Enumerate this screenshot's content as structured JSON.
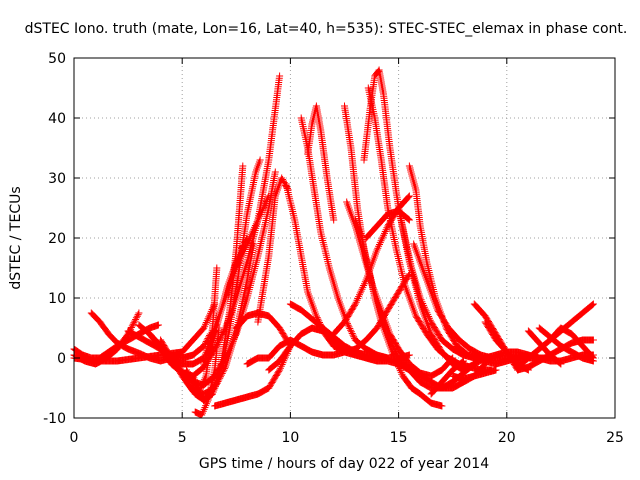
{
  "chart_data": {
    "type": "scatter",
    "title": "dSTEC Iono. truth (mate, Lon=16, Lat=40, h=535): STEC-STEC_elemax in phase cont.",
    "xlabel": "GPS time / hours of day 022 of year 2014",
    "ylabel": "dSTEC  / TECUs",
    "xlim": [
      0,
      25
    ],
    "ylim": [
      -10,
      50
    ],
    "xticks": [
      0,
      5,
      10,
      15,
      20,
      25
    ],
    "yticks": [
      -10,
      0,
      10,
      20,
      30,
      40,
      50
    ],
    "grid": true,
    "marker": "plus",
    "color": "#ff0000",
    "series": [
      {
        "x": [
          0.0,
          0.5,
          1.0,
          1.5,
          2.0,
          2.5,
          3.0
        ],
        "y": [
          0.5,
          -0.5,
          -1.0,
          0.0,
          1.5,
          4.0,
          7.5
        ]
      },
      {
        "x": [
          0.0,
          0.4,
          0.8,
          1.2,
          1.6,
          2.0,
          2.5,
          3.0,
          3.5,
          3.9
        ],
        "y": [
          1.5,
          0.5,
          0.0,
          0.0,
          1.0,
          2.0,
          3.0,
          4.0,
          5.0,
          5.5
        ]
      },
      {
        "x": [
          0.8,
          1.2,
          1.6,
          2.0,
          2.5,
          3.0,
          3.5,
          4.0,
          4.5,
          5.0
        ],
        "y": [
          7.5,
          6.0,
          4.0,
          2.5,
          1.5,
          0.8,
          0.0,
          -0.5,
          0.0,
          1.0
        ]
      },
      {
        "x": [
          0.0,
          1.0,
          2.0,
          3.0,
          4.0,
          5.0,
          6.0,
          6.5
        ],
        "y": [
          0.0,
          -0.5,
          -0.5,
          0.0,
          0.5,
          1.0,
          5.0,
          9.0
        ]
      },
      {
        "x": [
          2.5,
          3.0,
          3.5,
          4.0,
          4.5,
          5.0,
          5.5,
          6.0,
          6.3
        ],
        "y": [
          4.5,
          3.5,
          2.5,
          1.5,
          0.5,
          0.0,
          0.5,
          2.0,
          4.0
        ]
      },
      {
        "x": [
          3.0,
          3.5,
          4.0,
          4.5,
          5.0,
          5.5,
          6.0,
          6.5
        ],
        "y": [
          5.5,
          4.0,
          2.0,
          0.0,
          -1.0,
          -1.0,
          0.0,
          4.5
        ]
      },
      {
        "x": [
          3.5,
          4.0,
          4.5,
          5.0,
          5.5,
          6.0,
          6.5,
          7.0,
          7.5,
          8.0,
          8.5,
          9.0,
          9.5
        ],
        "y": [
          4.0,
          1.5,
          -1.0,
          -2.5,
          -3.0,
          -1.5,
          1.5,
          5.0,
          10.0,
          16.0,
          23.0,
          33.0,
          47.0
        ]
      },
      {
        "x": [
          4.0,
          4.5,
          5.0,
          5.5,
          6.0,
          6.5,
          7.0,
          7.5,
          8.0,
          8.5,
          9.0,
          9.3
        ],
        "y": [
          3.0,
          0.0,
          -2.5,
          -4.0,
          -4.5,
          -3.0,
          0.0,
          4.0,
          10.0,
          17.0,
          25.0,
          31.0
        ]
      },
      {
        "x": [
          4.5,
          5.0,
          5.5,
          6.0,
          6.5,
          7.0,
          7.5,
          8.0,
          8.3
        ],
        "y": [
          0.0,
          -3.0,
          -5.5,
          -6.0,
          -5.0,
          -1.5,
          4.5,
          13.0,
          19.0
        ]
      },
      {
        "x": [
          4.8,
          5.2,
          5.6,
          6.0,
          6.4,
          6.8,
          7.2,
          7.6,
          8.0,
          8.4,
          8.6
        ],
        "y": [
          -1.0,
          -4.0,
          -6.0,
          -7.0,
          -6.0,
          -2.0,
          5.0,
          14.0,
          24.0,
          31.0,
          33.0
        ]
      },
      {
        "x": [
          5.2,
          5.6,
          6.0,
          6.4,
          6.8,
          7.2,
          7.5,
          7.8
        ],
        "y": [
          -2.0,
          -5.0,
          -7.0,
          -6.0,
          -1.0,
          8.0,
          18.0,
          32.0
        ]
      },
      {
        "x": [
          5.5,
          5.8,
          6.1,
          6.4,
          6.6
        ],
        "y": [
          -3.0,
          -5.5,
          -3.0,
          5.0,
          15.0
        ]
      },
      {
        "x": [
          5.6,
          5.9,
          6.2,
          6.5,
          6.7
        ],
        "y": [
          -9.0,
          -9.5,
          -7.0,
          -2.0,
          5.0
        ]
      },
      {
        "x": [
          6.0,
          6.5,
          7.0,
          7.5,
          8.0,
          8.5,
          9.0
        ],
        "y": [
          -1.0,
          5.0,
          10.0,
          15.0,
          19.0,
          23.0,
          27.0
        ]
      },
      {
        "x": [
          6.2,
          6.5,
          6.8,
          7.1,
          7.4,
          7.7,
          8.0
        ],
        "y": [
          0.0,
          4.0,
          8.0,
          12.0,
          15.0,
          18.0,
          20.0
        ]
      },
      {
        "x": [
          6.5,
          7.0,
          7.5,
          8.0,
          8.5,
          9.0,
          9.5,
          10.0
        ],
        "y": [
          -8.0,
          -7.5,
          -7.0,
          -6.5,
          -6.0,
          -5.0,
          -2.0,
          2.0
        ]
      },
      {
        "x": [
          8.0,
          8.5,
          9.0,
          9.5,
          10.0,
          10.5,
          11.0,
          11.5,
          12.0,
          12.5,
          13.0,
          13.5,
          14.0,
          14.5,
          15.0,
          15.5
        ],
        "y": [
          -1.0,
          0.0,
          0.0,
          2.0,
          3.0,
          2.0,
          1.0,
          0.5,
          0.5,
          1.0,
          1.5,
          3.0,
          5.0,
          8.0,
          11.0,
          14.0
        ]
      },
      {
        "x": [
          7.5,
          8.0,
          8.5,
          9.0,
          9.5,
          10.0
        ],
        "y": [
          5.0,
          7.0,
          7.5,
          7.0,
          5.0,
          2.0
        ]
      },
      {
        "x": [
          8.5,
          9.0,
          9.3,
          9.6,
          9.9
        ],
        "y": [
          6.0,
          17.0,
          27.0,
          30.0,
          28.0
        ]
      },
      {
        "x": [
          9.0,
          9.5,
          10.0,
          10.5,
          11.0,
          11.5,
          12.0,
          12.5,
          13.0,
          13.5,
          14.0
        ],
        "y": [
          -2.0,
          -0.5,
          2.0,
          4.0,
          5.0,
          4.5,
          3.0,
          1.5,
          0.5,
          0.0,
          0.0
        ]
      },
      {
        "x": [
          9.8,
          10.2,
          10.5,
          10.8,
          11.2,
          11.6,
          12.0,
          12.5,
          13.0
        ],
        "y": [
          29.0,
          23.0,
          17.0,
          11.0,
          7.0,
          4.0,
          2.0,
          1.0,
          0.5
        ]
      },
      {
        "x": [
          10.5,
          10.8,
          11.1,
          11.4,
          11.8,
          12.2,
          12.6,
          13.0,
          13.5,
          14.0,
          14.5,
          15.0,
          15.5
        ],
        "y": [
          40.0,
          35.0,
          28.0,
          21.0,
          15.0,
          10.0,
          6.0,
          3.0,
          1.5,
          0.5,
          0.0,
          0.0,
          0.5
        ]
      },
      {
        "x": [
          10.8,
          11.0,
          11.2,
          11.4,
          11.7,
          12.0
        ],
        "y": [
          34.0,
          39.0,
          42.0,
          38.0,
          30.0,
          23.0
        ]
      },
      {
        "x": [
          10.0,
          10.5,
          11.0,
          11.5,
          12.0,
          12.5,
          13.0,
          13.5,
          14.0,
          14.5
        ],
        "y": [
          9.0,
          8.0,
          6.5,
          5.0,
          3.5,
          2.0,
          1.0,
          0.5,
          0.0,
          0.0
        ]
      },
      {
        "x": [
          12.5,
          12.8,
          13.1,
          13.4,
          13.8,
          14.2,
          14.6,
          15.0,
          15.5,
          16.0,
          16.5,
          17.0,
          17.5
        ],
        "y": [
          42.0,
          35.0,
          25.0,
          18.0,
          12.0,
          8.0,
          4.0,
          1.5,
          -1.0,
          -2.5,
          -3.0,
          -2.0,
          0.0
        ]
      },
      {
        "x": [
          12.6,
          13.0,
          13.4,
          13.8,
          14.2,
          14.6,
          15.0,
          15.5,
          16.0,
          16.5,
          17.0,
          17.5,
          18.0,
          18.5
        ],
        "y": [
          26.0,
          22.0,
          17.0,
          12.0,
          7.0,
          3.0,
          0.0,
          -2.0,
          -4.0,
          -5.0,
          -5.0,
          -4.0,
          -2.5,
          -1.0
        ]
      },
      {
        "x": [
          13.0,
          13.3,
          13.6,
          13.9,
          14.2,
          14.5,
          14.8,
          15.2,
          15.6,
          16.0,
          16.5,
          17.0
        ],
        "y": [
          23.0,
          20.0,
          15.0,
          10.0,
          6.0,
          3.0,
          0.0,
          -3.0,
          -5.0,
          -6.0,
          -7.5,
          -8.0
        ]
      },
      {
        "x": [
          13.0,
          13.5,
          14.0,
          14.5,
          15.0,
          15.5,
          16.0,
          16.5,
          17.0,
          17.5,
          18.0,
          18.5,
          19.0
        ],
        "y": [
          1.0,
          0.0,
          -0.5,
          -0.5,
          -1.0,
          -2.0,
          -3.0,
          -4.0,
          -5.0,
          -5.0,
          -4.0,
          -3.0,
          -1.0
        ]
      },
      {
        "x": [
          12.0,
          12.5,
          13.0,
          13.5,
          14.0,
          14.5,
          15.0,
          15.5
        ],
        "y": [
          4.0,
          6.0,
          9.0,
          13.0,
          18.0,
          22.0,
          25.0,
          27.0
        ]
      },
      {
        "x": [
          13.4,
          13.7,
          13.9,
          14.1,
          14.3,
          14.6,
          15.0,
          15.5,
          16.0,
          16.5,
          17.0,
          17.5,
          18.0
        ],
        "y": [
          33.0,
          42.0,
          47.0,
          48.0,
          44.0,
          35.0,
          25.0,
          16.0,
          9.0,
          4.0,
          1.0,
          -1.0,
          -2.0
        ]
      },
      {
        "x": [
          13.6,
          13.9,
          14.2,
          14.5,
          14.9,
          15.3,
          15.8,
          16.3,
          16.8,
          17.3,
          17.8,
          18.3,
          18.8,
          19.3
        ],
        "y": [
          45.0,
          40.0,
          33.0,
          25.0,
          18.0,
          12.0,
          7.0,
          4.0,
          1.5,
          0.0,
          -1.0,
          -1.5,
          -2.0,
          -2.0
        ]
      },
      {
        "x": [
          13.5,
          14.0,
          14.5,
          15.0,
          15.5
        ],
        "y": [
          20.0,
          22.0,
          24.0,
          24.5,
          23.0
        ]
      },
      {
        "x": [
          15.0,
          15.3,
          15.6,
          16.0,
          16.5,
          17.0,
          17.5,
          18.0,
          18.5,
          19.0,
          19.5,
          20.0,
          20.5,
          21.0
        ],
        "y": [
          25.0,
          20.0,
          15.0,
          10.0,
          6.0,
          3.0,
          1.5,
          0.5,
          0.0,
          -0.5,
          -1.0,
          -0.5,
          0.0,
          0.5
        ]
      },
      {
        "x": [
          15.5,
          15.8,
          16.0,
          16.3,
          16.7,
          17.2,
          17.7,
          18.2,
          18.7
        ],
        "y": [
          32.0,
          28.0,
          22.0,
          16.0,
          10.0,
          5.0,
          2.0,
          0.5,
          0.0
        ]
      },
      {
        "x": [
          15.7,
          16.0,
          16.4,
          16.8,
          17.3,
          17.8,
          18.3,
          18.8,
          19.3,
          19.8,
          20.3,
          20.8,
          21.5,
          22.0
        ],
        "y": [
          19.0,
          16.0,
          12.0,
          8.0,
          5.0,
          3.0,
          1.5,
          0.5,
          0.0,
          0.0,
          0.0,
          0.0,
          0.0,
          0.0
        ]
      },
      {
        "x": [
          18.0,
          18.5,
          19.0,
          19.5,
          20.0,
          20.5,
          21.0,
          21.5,
          22.0,
          22.5,
          23.0,
          23.5,
          24.0
        ],
        "y": [
          -2.0,
          -1.0,
          0.0,
          0.5,
          1.0,
          1.0,
          0.5,
          0.0,
          -0.5,
          -0.5,
          0.0,
          0.5,
          0.5
        ]
      },
      {
        "x": [
          18.5,
          19.0,
          19.5,
          20.0,
          20.5
        ],
        "y": [
          9.0,
          7.0,
          4.0,
          1.0,
          -2.0
        ]
      },
      {
        "x": [
          19.0,
          19.5,
          20.0,
          20.5,
          21.0
        ],
        "y": [
          6.0,
          3.0,
          1.0,
          -1.0,
          -2.0
        ]
      },
      {
        "x": [
          20.5,
          21.0,
          21.5,
          22.0,
          22.5,
          23.0,
          23.5,
          24.0
        ],
        "y": [
          -2.0,
          -1.5,
          -0.5,
          0.5,
          1.5,
          2.5,
          3.0,
          3.0
        ]
      },
      {
        "x": [
          20.5,
          21.0,
          21.5,
          22.0,
          22.5,
          23.0,
          23.5,
          24.0
        ],
        "y": [
          -1.5,
          0.0,
          1.5,
          3.0,
          4.5,
          6.0,
          7.5,
          9.0
        ]
      },
      {
        "x": [
          21.5,
          22.0,
          22.5,
          23.0,
          23.5,
          24.0
        ],
        "y": [
          5.0,
          3.5,
          2.0,
          1.0,
          0.0,
          -0.5
        ]
      },
      {
        "x": [
          22.0,
          22.5,
          23.0,
          23.5,
          24.0
        ],
        "y": [
          3.0,
          5.0,
          4.0,
          2.0,
          0.0
        ]
      },
      {
        "x": [
          21.0,
          21.5,
          22.0,
          22.5
        ],
        "y": [
          4.5,
          2.5,
          0.5,
          -1.0
        ]
      },
      {
        "x": [
          17.5,
          18.0,
          18.5,
          19.0,
          19.5
        ],
        "y": [
          -3.0,
          -3.5,
          -3.0,
          -2.5,
          -2.0
        ]
      },
      {
        "x": [
          16.5,
          17.0,
          17.5,
          18.0
        ],
        "y": [
          -6.0,
          -4.0,
          -2.0,
          -0.5
        ]
      }
    ]
  }
}
